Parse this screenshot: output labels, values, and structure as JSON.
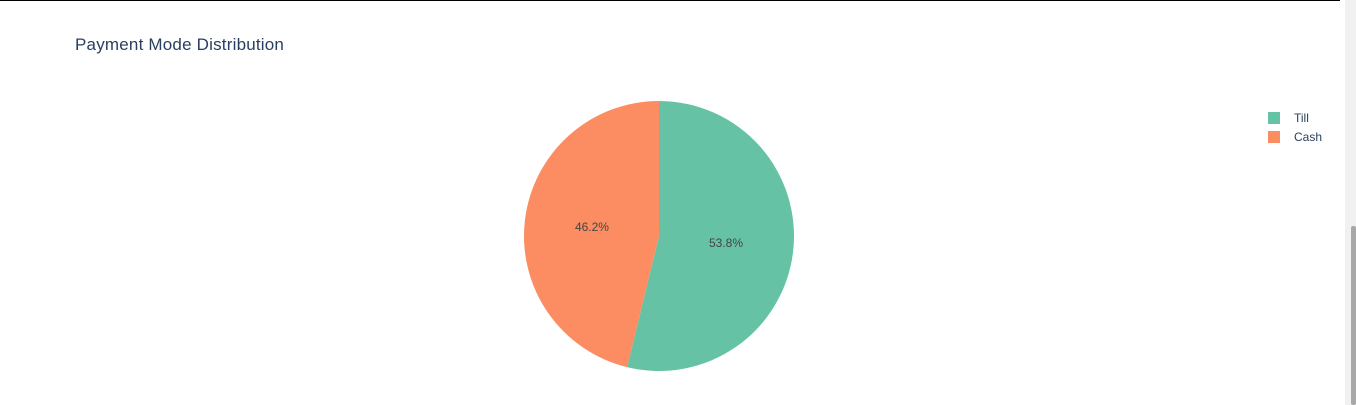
{
  "chart_data": {
    "type": "pie",
    "title": "Payment Mode Distribution",
    "slices": [
      {
        "label": "Till",
        "value": 53.8,
        "text": "53.8%",
        "color": "#66c2a5"
      },
      {
        "label": "Cash",
        "value": 46.2,
        "text": "46.2%",
        "color": "#fc8d62"
      }
    ],
    "legend_position": "top-right"
  }
}
